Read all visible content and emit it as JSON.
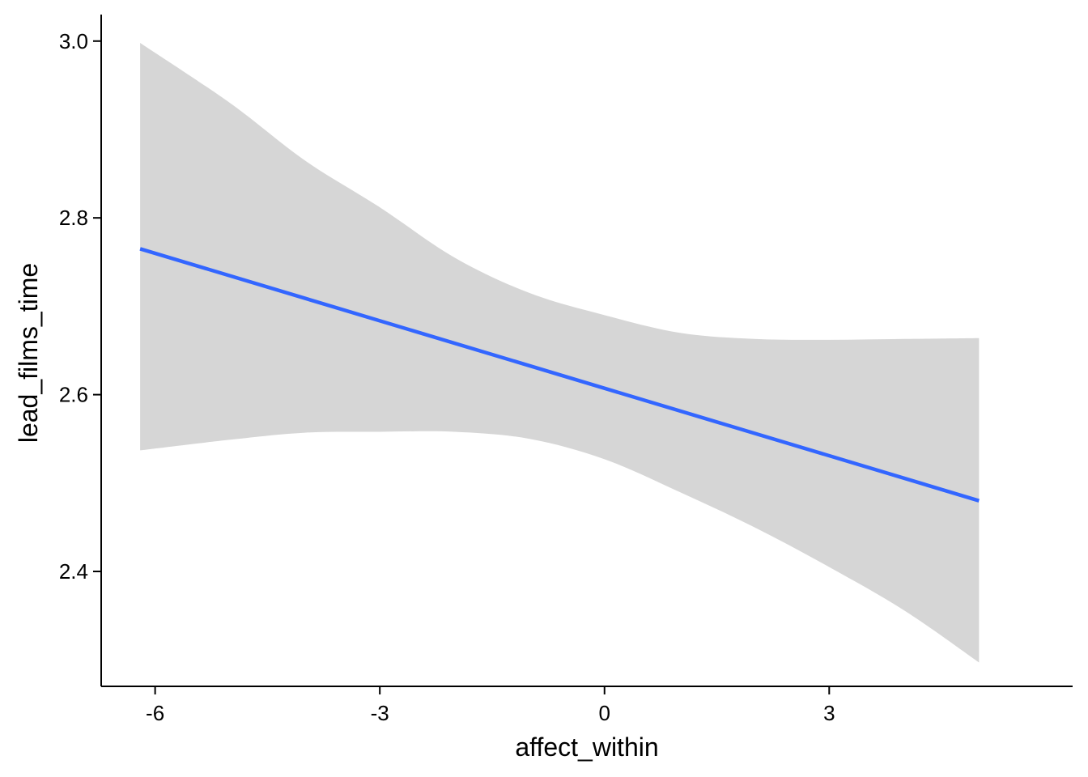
{
  "chart_data": {
    "type": "line",
    "title": "",
    "xlabel": "affect_within",
    "ylabel": "lead_films_time",
    "xlim": [
      -6.72,
      6.25
    ],
    "ylim": [
      2.27,
      3.03
    ],
    "x_ticks": [
      -6,
      -3,
      0,
      3
    ],
    "x_tick_labels": [
      "-6",
      "-3",
      "0",
      "3"
    ],
    "y_ticks": [
      2.4,
      2.6,
      2.8,
      3.0
    ],
    "y_tick_labels": [
      "2.4",
      "2.6",
      "2.8",
      "3.0"
    ],
    "grid": false,
    "legend": "none",
    "series": [
      {
        "x": [
          -6.2,
          5.0
        ],
        "y": [
          2.765,
          2.48
        ]
      }
    ],
    "confidence_band": {
      "x": [
        -6.2,
        -5.0,
        -4.0,
        -3.0,
        -2.0,
        -1.0,
        0.0,
        1.0,
        2.0,
        3.0,
        4.0,
        5.0
      ],
      "lower": [
        2.537,
        2.549,
        2.557,
        2.558,
        2.558,
        2.55,
        2.527,
        2.49,
        2.45,
        2.405,
        2.356,
        2.297
      ],
      "upper": [
        2.998,
        2.93,
        2.865,
        2.812,
        2.755,
        2.715,
        2.69,
        2.67,
        2.663,
        2.662,
        2.663,
        2.664
      ]
    },
    "colors": {
      "line": "#3366FF",
      "band": "#D6D6D6",
      "axis": "#000000"
    }
  }
}
